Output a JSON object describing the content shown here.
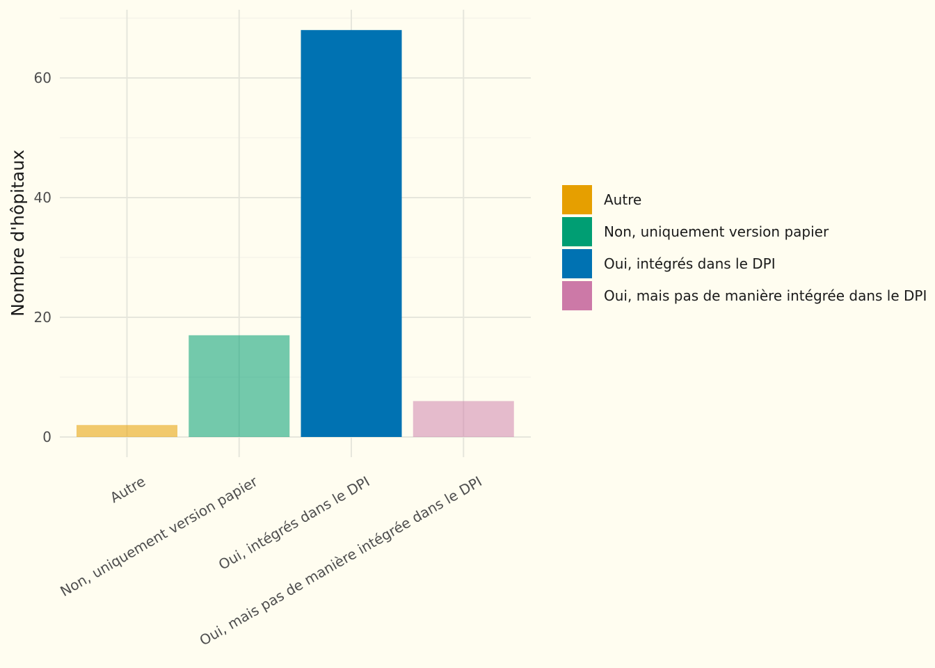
{
  "chart_data": {
    "type": "bar",
    "categories": [
      "Autre",
      "Non, uniquement version papier",
      "Oui, intégrés dans le DPI",
      "Oui, mais pas de manière intégrée dans le DPI"
    ],
    "values": [
      2,
      17,
      68,
      6
    ],
    "colors": [
      "#E69F00",
      "#009E73",
      "#0072B2",
      "#CC79A7"
    ],
    "bar_opacity": [
      0.55,
      0.55,
      1.0,
      0.5
    ],
    "title": "",
    "xlabel": "",
    "ylabel": "Nombre d'hôpitaux",
    "ylim": [
      0,
      70
    ],
    "yticks": [
      0,
      20,
      40,
      60
    ],
    "grid": true,
    "legend_position": "right",
    "legend": [
      {
        "label": "Autre",
        "color": "#E69F00"
      },
      {
        "label": "Non, uniquement version papier",
        "color": "#009E73"
      },
      {
        "label": "Oui, intégrés dans le DPI",
        "color": "#0072B2"
      },
      {
        "label": "Oui, mais pas de manière intégrée dans le DPI",
        "color": "#CC79A7"
      }
    ]
  }
}
